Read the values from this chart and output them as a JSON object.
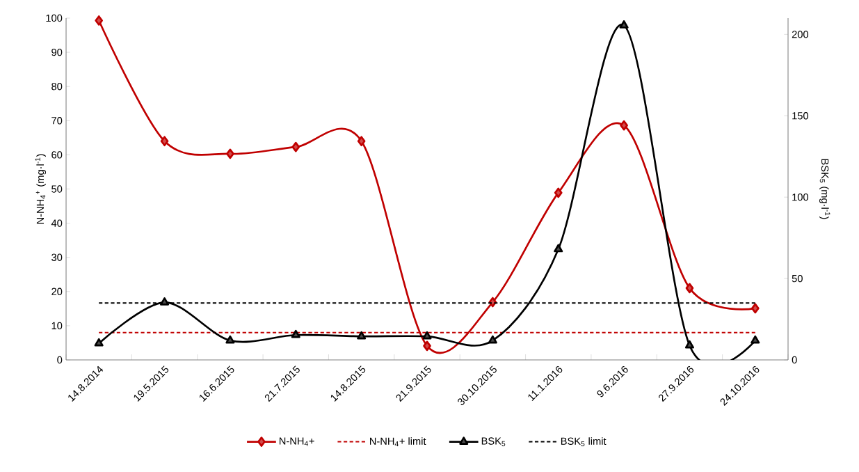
{
  "chart_data": {
    "type": "line",
    "categories": [
      "14.8.2014",
      "19.5.2015",
      "16.6.2015",
      "21.7.2015",
      "14.8.2015",
      "21.9.2015",
      "30.10.2015",
      "11.1.2016",
      "9.6.2016",
      "27.9.2016",
      "24.10.2016"
    ],
    "ylabel": "N-NH$_{4}$$^{+}$ (mg·l$^{-1}$)",
    "y2label": "BSK$_{5}$ (mg·l$^{-1}$)",
    "ylim": [
      0,
      100
    ],
    "yticks": [
      0,
      10,
      20,
      30,
      40,
      50,
      60,
      70,
      80,
      90,
      100
    ],
    "y2lim": [
      0,
      210
    ],
    "y2ticks": [
      0,
      50,
      100,
      150,
      200
    ],
    "legend": "bottom",
    "series": [
      {
        "name": "N-NH$_{4}$+",
        "color": "#c00000",
        "marker": "diamond",
        "line_style": "solid",
        "values": [
          99.3,
          64,
          60.3,
          62.3,
          64,
          4.1,
          16.9,
          48.9,
          68.6,
          21,
          15.1
        ]
      },
      {
        "name": "N-NH$_{4}$+ limit",
        "color": "#c00000",
        "marker": "none",
        "line_style": "dashed",
        "values": [
          8,
          8,
          8,
          8,
          8,
          8,
          8,
          8,
          8,
          8,
          8
        ]
      },
      {
        "name": "BSK$_{5}$",
        "color": "#000000",
        "marker": "triangle",
        "line_style": "solid",
        "axis": "y2",
        "values": [
          10.2,
          35.3,
          11.9,
          15.3,
          14.5,
          14.5,
          11.9,
          68,
          205.5,
          8.9,
          11.9
        ]
      },
      {
        "name": "BSK$_{5}$ limit",
        "color": "#000000",
        "marker": "none",
        "line_style": "dashed",
        "axis": "y2",
        "values": [
          35,
          35,
          35,
          35,
          35,
          35,
          35,
          35,
          35,
          35,
          35
        ]
      }
    ]
  }
}
